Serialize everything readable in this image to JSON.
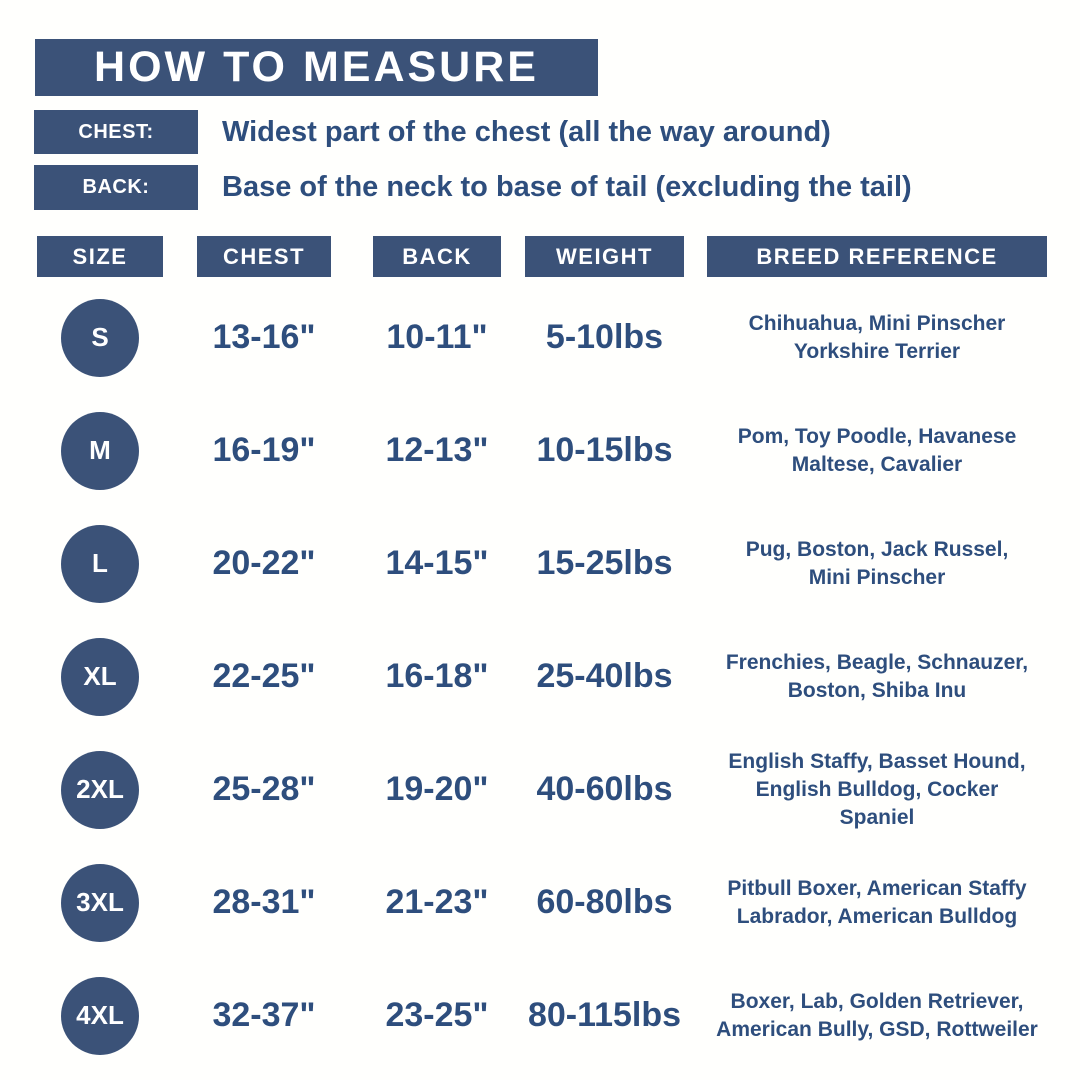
{
  "title": "HOW TO MEASURE",
  "instructions": [
    {
      "label": "CHEST:",
      "text": "Widest part of the chest (all the way around)"
    },
    {
      "label": "BACK:",
      "text": "Base of the neck to base of tail (excluding the tail)"
    }
  ],
  "table": {
    "headers": [
      "SIZE",
      "CHEST",
      "BACK",
      "WEIGHT",
      "BREED REFERENCE"
    ],
    "rows": [
      {
        "size": "S",
        "chest": "13-16\"",
        "back": "10-11\"",
        "weight": "5-10lbs",
        "breeds": "Chihuahua, Mini Pinscher\nYorkshire Terrier"
      },
      {
        "size": "M",
        "chest": "16-19\"",
        "back": "12-13\"",
        "weight": "10-15lbs",
        "breeds": "Pom, Toy Poodle, Havanese\nMaltese, Cavalier"
      },
      {
        "size": "L",
        "chest": "20-22\"",
        "back": "14-15\"",
        "weight": "15-25lbs",
        "breeds": "Pug, Boston, Jack Russel,\nMini Pinscher"
      },
      {
        "size": "XL",
        "chest": "22-25\"",
        "back": "16-18\"",
        "weight": "25-40lbs",
        "breeds": "Frenchies, Beagle, Schnauzer,\nBoston, Shiba Inu"
      },
      {
        "size": "2XL",
        "chest": "25-28\"",
        "back": "19-20\"",
        "weight": "40-60lbs",
        "breeds": "English Staffy, Basset Hound,\nEnglish Bulldog, Cocker\nSpaniel"
      },
      {
        "size": "3XL",
        "chest": "28-31\"",
        "back": "21-23\"",
        "weight": "60-80lbs",
        "breeds": "Pitbull Boxer, American Staffy\nLabrador, American Bulldog"
      },
      {
        "size": "4XL",
        "chest": "32-37\"",
        "back": "23-25\"",
        "weight": "80-115lbs",
        "breeds": "Boxer, Lab, Golden Retriever,\nAmerican Bully, GSD, Rottweiler"
      }
    ]
  },
  "colors": {
    "primary_blue": "#3b5278",
    "text_navy": "#2e4e7d",
    "background": "#ffffff",
    "header_text": "#ffffff"
  },
  "chart_data": {
    "type": "table",
    "title": "HOW TO MEASURE",
    "columns": [
      "SIZE",
      "CHEST",
      "BACK",
      "WEIGHT",
      "BREED REFERENCE"
    ],
    "rows": [
      [
        "S",
        "13-16\"",
        "10-11\"",
        "5-10lbs",
        "Chihuahua, Mini Pinscher Yorkshire Terrier"
      ],
      [
        "M",
        "16-19\"",
        "12-13\"",
        "10-15lbs",
        "Pom, Toy Poodle, Havanese Maltese, Cavalier"
      ],
      [
        "L",
        "20-22\"",
        "14-15\"",
        "15-25lbs",
        "Pug, Boston, Jack Russel, Mini Pinscher"
      ],
      [
        "XL",
        "22-25\"",
        "16-18\"",
        "25-40lbs",
        "Frenchies, Beagle, Schnauzer, Boston, Shiba Inu"
      ],
      [
        "2XL",
        "25-28\"",
        "19-20\"",
        "40-60lbs",
        "English Staffy, Basset Hound, English Bulldog, Cocker Spaniel"
      ],
      [
        "3XL",
        "28-31\"",
        "21-23\"",
        "60-80lbs",
        "Pitbull Boxer, American Staffy Labrador, American Bulldog"
      ],
      [
        "4XL",
        "32-37\"",
        "23-25\"",
        "80-115lbs",
        "Boxer, Lab, Golden Retriever, American Bully, GSD, Rottweiler"
      ]
    ]
  }
}
